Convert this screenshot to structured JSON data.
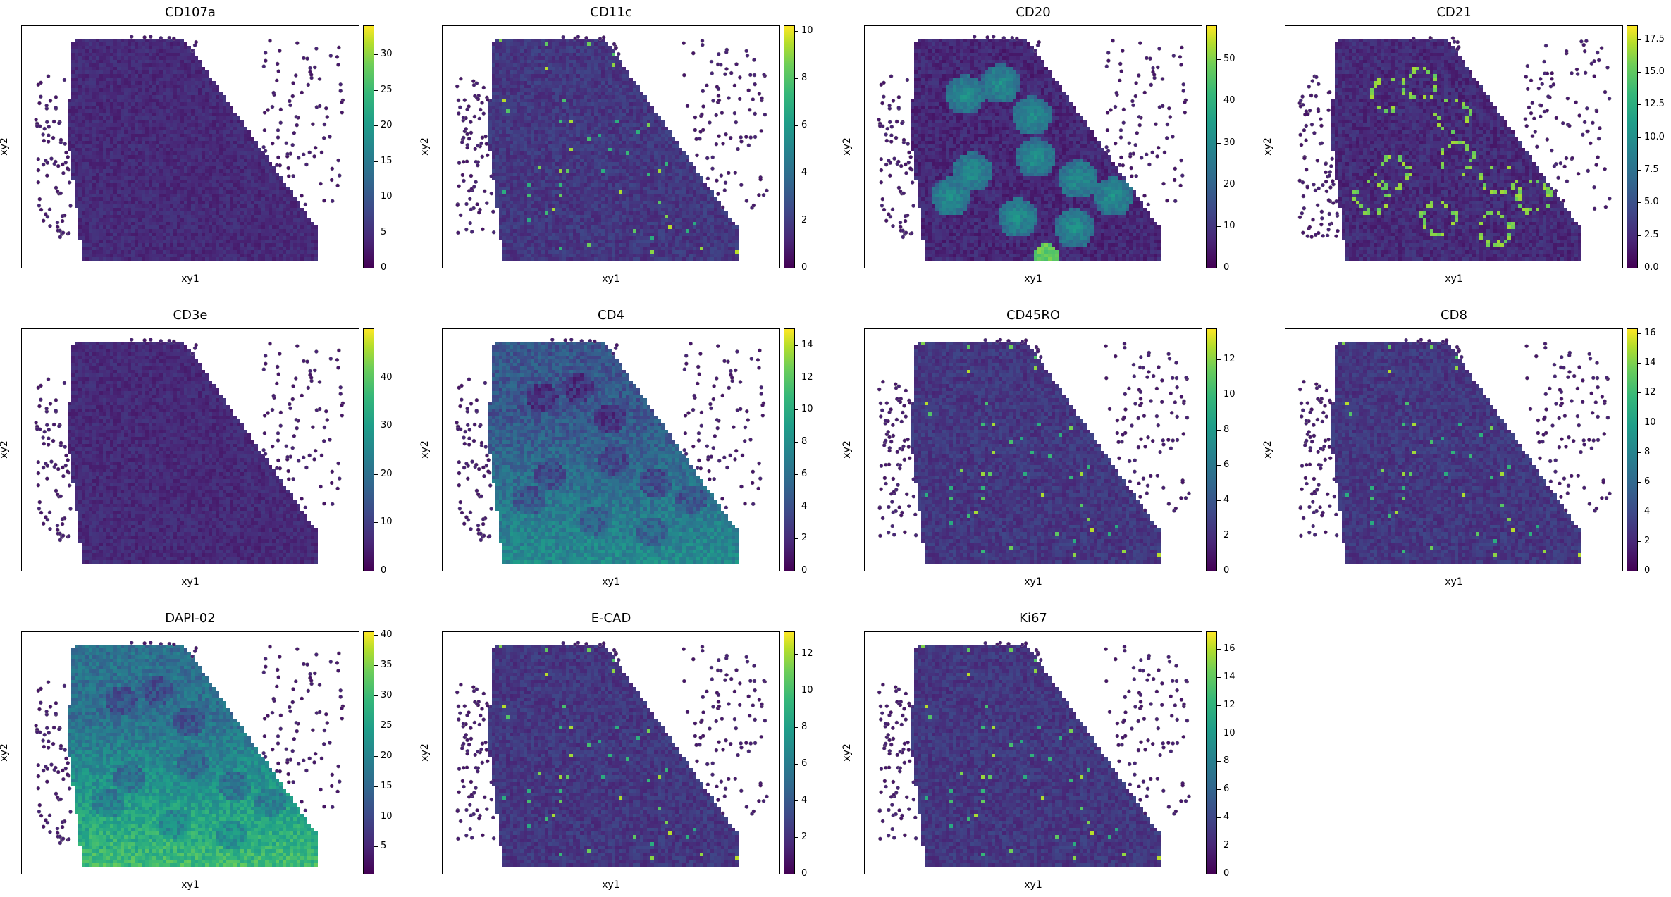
{
  "figure": {
    "xlabel": "xy1",
    "ylabel": "xy2",
    "colormap": "viridis"
  },
  "colors": {
    "low": "#440154",
    "mid": "#21918c",
    "high": "#fde725",
    "edge": "#888888"
  },
  "chart_data": [
    {
      "type": "scatter",
      "title": "CD107a",
      "xlabel": "xy1",
      "ylabel": "xy2",
      "vmin": 0,
      "vmax": 34,
      "colorbar_ticks": [
        "0",
        "5",
        "10",
        "15",
        "20",
        "25",
        "30"
      ],
      "hotspots": []
    },
    {
      "type": "scatter",
      "title": "CD11c",
      "xlabel": "xy1",
      "ylabel": "xy2",
      "vmin": 0,
      "vmax": 10.2,
      "colorbar_ticks": [
        "0",
        "2",
        "4",
        "6",
        "8",
        "10"
      ],
      "hotspots": []
    },
    {
      "type": "scatter",
      "title": "CD20",
      "xlabel": "xy1",
      "ylabel": "xy2",
      "vmin": 0,
      "vmax": 58,
      "colorbar_ticks": [
        "0",
        "10",
        "20",
        "30",
        "40",
        "50"
      ],
      "hotspots": []
    },
    {
      "type": "scatter",
      "title": "CD21",
      "xlabel": "xy1",
      "ylabel": "xy2",
      "vmin": 0,
      "vmax": 18.5,
      "colorbar_ticks": [
        "0.0",
        "2.5",
        "5.0",
        "7.5",
        "10.0",
        "12.5",
        "15.0",
        "17.5"
      ],
      "hotspots": []
    },
    {
      "type": "scatter",
      "title": "CD3e",
      "xlabel": "xy1",
      "ylabel": "xy2",
      "vmin": 0,
      "vmax": 50,
      "colorbar_ticks": [
        "0",
        "10",
        "20",
        "30",
        "40"
      ],
      "hotspots": []
    },
    {
      "type": "scatter",
      "title": "CD4",
      "xlabel": "xy1",
      "ylabel": "xy2",
      "vmin": 0,
      "vmax": 15,
      "colorbar_ticks": [
        "0",
        "2",
        "4",
        "6",
        "8",
        "10",
        "12",
        "14"
      ],
      "hotspots": []
    },
    {
      "type": "scatter",
      "title": "CD45RO",
      "xlabel": "xy1",
      "ylabel": "xy2",
      "vmin": 0,
      "vmax": 13.7,
      "colorbar_ticks": [
        "0",
        "2",
        "4",
        "6",
        "8",
        "10",
        "12"
      ],
      "hotspots": []
    },
    {
      "type": "scatter",
      "title": "CD8",
      "xlabel": "xy1",
      "ylabel": "xy2",
      "vmin": 0,
      "vmax": 16.3,
      "colorbar_ticks": [
        "0",
        "2",
        "4",
        "6",
        "8",
        "10",
        "12",
        "14",
        "16"
      ],
      "hotspots": []
    },
    {
      "type": "scatter",
      "title": "DAPI-02",
      "xlabel": "xy1",
      "ylabel": "xy2",
      "vmin": 0.5,
      "vmax": 40.5,
      "colorbar_ticks": [
        "5",
        "10",
        "15",
        "20",
        "25",
        "30",
        "35",
        "40"
      ],
      "hotspots": []
    },
    {
      "type": "scatter",
      "title": "E-CAD",
      "xlabel": "xy1",
      "ylabel": "xy2",
      "vmin": 0,
      "vmax": 13.2,
      "colorbar_ticks": [
        "0",
        "2",
        "4",
        "6",
        "8",
        "10",
        "12"
      ],
      "hotspots": []
    },
    {
      "type": "scatter",
      "title": "Ki67",
      "xlabel": "xy1",
      "ylabel": "xy2",
      "vmin": 0,
      "vmax": 17.2,
      "colorbar_ticks": [
        "0",
        "2",
        "4",
        "6",
        "8",
        "10",
        "12",
        "14",
        "16"
      ],
      "hotspots": []
    }
  ]
}
